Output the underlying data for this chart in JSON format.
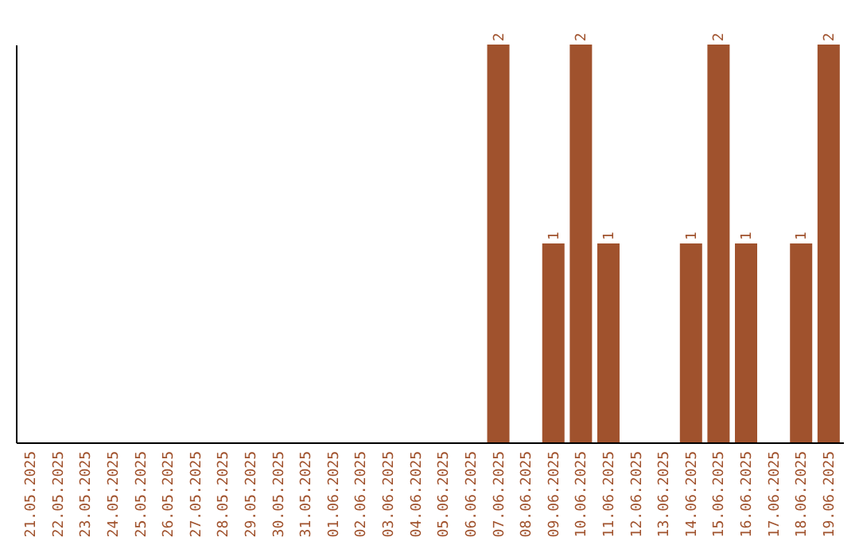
{
  "chart_data": {
    "type": "bar",
    "categories": [
      "21.05.2025",
      "22.05.2025",
      "23.05.2025",
      "24.05.2025",
      "25.05.2025",
      "26.05.2025",
      "27.05.2025",
      "28.05.2025",
      "29.05.2025",
      "30.05.2025",
      "31.05.2025",
      "01.06.2025",
      "02.06.2025",
      "03.06.2025",
      "04.06.2025",
      "05.06.2025",
      "06.06.2025",
      "07.06.2025",
      "08.06.2025",
      "09.06.2025",
      "10.06.2025",
      "11.06.2025",
      "12.06.2025",
      "13.06.2025",
      "14.06.2025",
      "15.06.2025",
      "16.06.2025",
      "17.06.2025",
      "18.06.2025",
      "19.06.2025"
    ],
    "values": [
      null,
      null,
      null,
      null,
      null,
      null,
      null,
      null,
      null,
      null,
      null,
      null,
      null,
      null,
      null,
      null,
      null,
      2,
      null,
      1,
      2,
      1,
      null,
      null,
      1,
      2,
      1,
      null,
      1,
      2
    ],
    "value_labels": [
      null,
      null,
      null,
      null,
      null,
      null,
      null,
      null,
      null,
      null,
      null,
      null,
      null,
      null,
      null,
      null,
      null,
      "2",
      null,
      "1",
      "2",
      "1",
      null,
      null,
      "1",
      "2",
      "1",
      null,
      "1",
      "2"
    ],
    "color": "#a0522d",
    "grid": false
  }
}
